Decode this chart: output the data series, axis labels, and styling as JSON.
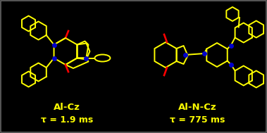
{
  "background_color": "#000000",
  "yellow": "#FFFF00",
  "blue": "#0000CD",
  "red": "#FF0000",
  "label_left": "Al-Cz",
  "label_right": "Al-N-Cz",
  "tau_left": "τ = 1.9 ms",
  "tau_right": "τ = 775 ms",
  "label_fontsize": 9.5,
  "tau_fontsize": 9.0,
  "lw": 1.4
}
